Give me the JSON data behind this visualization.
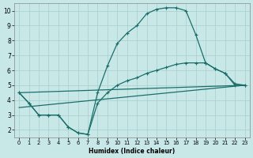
{
  "bg_color": "#c8e8e8",
  "grid_color": "#a8cccc",
  "line_color": "#1a6e6a",
  "xlabel": "Humidex (Indice chaleur)",
  "xlim": [
    -0.5,
    23.5
  ],
  "ylim": [
    1.5,
    10.5
  ],
  "xticks": [
    0,
    1,
    2,
    3,
    4,
    5,
    6,
    7,
    8,
    9,
    10,
    11,
    12,
    13,
    14,
    15,
    16,
    17,
    18,
    19,
    20,
    21,
    22,
    23
  ],
  "yticks": [
    2,
    3,
    4,
    5,
    6,
    7,
    8,
    9,
    10
  ],
  "curve_top_x": [
    0,
    1,
    2,
    3,
    4,
    5,
    6,
    7,
    8,
    9,
    10,
    11,
    12,
    13,
    14,
    15,
    16,
    17,
    18,
    19,
    20,
    21,
    22,
    23
  ],
  "curve_top_y": [
    4.5,
    3.8,
    3.0,
    3.0,
    3.0,
    2.2,
    1.8,
    1.7,
    4.5,
    6.3,
    7.8,
    8.5,
    9.0,
    9.8,
    10.1,
    10.2,
    10.2,
    10.0,
    8.4,
    6.5,
    6.1,
    5.8,
    5.0,
    5.0
  ],
  "curve_mid_x": [
    0,
    1,
    2,
    3,
    4,
    5,
    6,
    7,
    8,
    9,
    10,
    11,
    12,
    13,
    14,
    15,
    16,
    17,
    18,
    19,
    20,
    21,
    22,
    23
  ],
  "curve_mid_y": [
    4.5,
    3.8,
    3.0,
    3.0,
    3.0,
    2.2,
    1.8,
    1.7,
    3.8,
    4.5,
    5.0,
    5.3,
    5.5,
    5.8,
    6.0,
    6.2,
    6.4,
    6.5,
    6.5,
    6.5,
    6.1,
    5.8,
    5.1,
    5.0
  ],
  "line1_x": [
    0,
    23
  ],
  "line1_y": [
    3.5,
    5.0
  ],
  "line2_x": [
    0,
    23
  ],
  "line2_y": [
    4.5,
    5.0
  ]
}
